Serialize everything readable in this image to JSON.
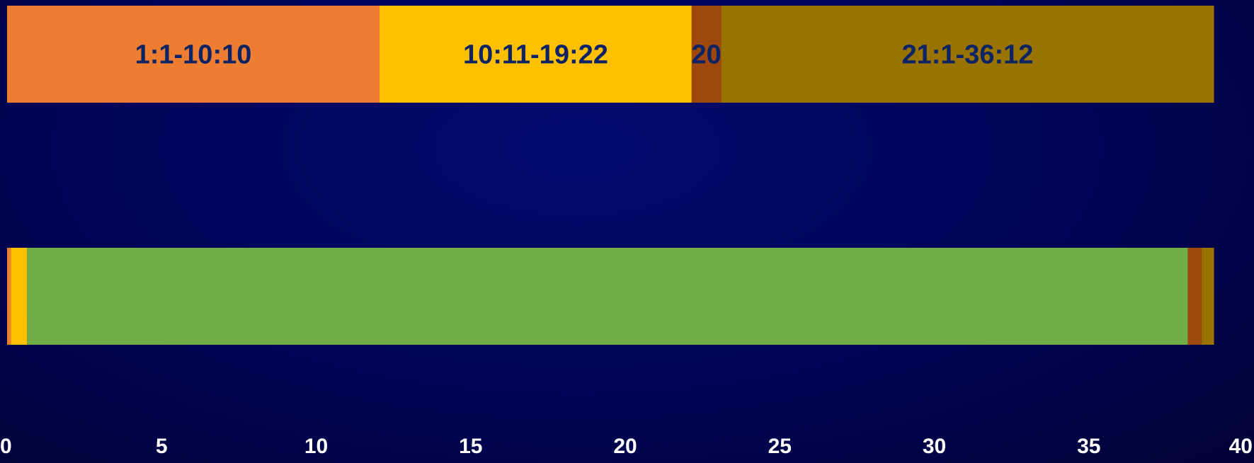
{
  "chart_data": {
    "type": "bar",
    "orientation": "horizontal",
    "stacked": true,
    "xlim": [
      0,
      40
    ],
    "x_ticks": [
      "0",
      "5",
      "10",
      "15",
      "20",
      "25",
      "30",
      "35",
      "40"
    ],
    "grid": false,
    "legend": "none",
    "bars": [
      {
        "segments": [
          {
            "label": "1:1-10:10",
            "start": 0,
            "end": 12.05,
            "color": "#ed7d31"
          },
          {
            "label": "10:11-19:22",
            "start": 12.05,
            "end": 22.15,
            "color": "#ffc000"
          },
          {
            "label": "20",
            "start": 22.15,
            "end": 23.1,
            "color": "#9e480e"
          },
          {
            "label": "21:1-36:12",
            "start": 23.1,
            "end": 39.05,
            "color": "#997300"
          }
        ]
      },
      {
        "segments": [
          {
            "label": "",
            "start": 0,
            "end": 0.12,
            "color": "#ed7d31"
          },
          {
            "label": "",
            "start": 0.12,
            "end": 0.65,
            "color": "#ffc000"
          },
          {
            "label": "",
            "start": 0.65,
            "end": 38.2,
            "color": "#70ad47"
          },
          {
            "label": "",
            "start": 38.2,
            "end": 38.65,
            "color": "#9e480e"
          },
          {
            "label": "",
            "start": 38.65,
            "end": 39.05,
            "color": "#997300"
          }
        ]
      }
    ],
    "label_color": "#0d2364",
    "tick_color": "#ffffff"
  }
}
